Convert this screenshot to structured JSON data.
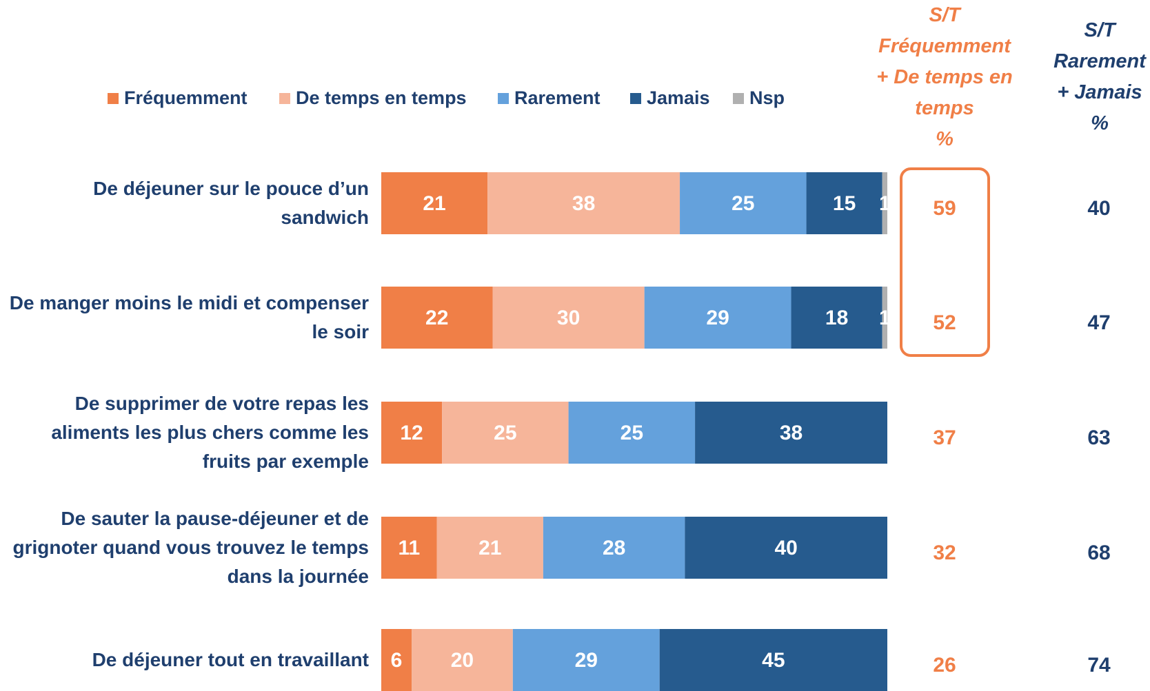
{
  "chart_data": {
    "type": "stacked-bar-horizontal",
    "categories": [
      "De déjeuner sur le pouce d’un sandwich",
      "De manger moins le midi et compenser le soir",
      "De supprimer de votre repas les aliments les plus chers comme les fruits par exemple",
      "De sauter la pause-déjeuner et de grignoter quand vous trouvez le temps dans la journée",
      "De déjeuner tout en travaillant"
    ],
    "xlim": [
      0,
      100
    ],
    "series": [
      {
        "name": "Fréquemment",
        "color": "#f07f47",
        "values": [
          21,
          22,
          12,
          11,
          6
        ]
      },
      {
        "name": "De temps en temps",
        "color": "#f6b59a",
        "values": [
          38,
          30,
          25,
          21,
          20
        ]
      },
      {
        "name": "Rarement",
        "color": "#64a1dc",
        "values": [
          25,
          29,
          25,
          28,
          29
        ]
      },
      {
        "name": "Jamais",
        "color": "#265b8e",
        "values": [
          15,
          18,
          38,
          40,
          45
        ]
      },
      {
        "name": "Nsp",
        "color": "#b0b0b0",
        "values": [
          1,
          1,
          0,
          0,
          0
        ]
      }
    ],
    "summary_columns": [
      {
        "header": [
          "S/T",
          "Fréquemment",
          "+ De temps en",
          "temps",
          "%"
        ],
        "color": "#f07f47",
        "values": [
          59,
          52,
          37,
          32,
          26
        ]
      },
      {
        "header": [
          "S/T",
          "Rarement",
          "+ Jamais",
          "%"
        ],
        "color": "#1f3f6e",
        "values": [
          40,
          47,
          63,
          68,
          74
        ]
      }
    ]
  }
}
